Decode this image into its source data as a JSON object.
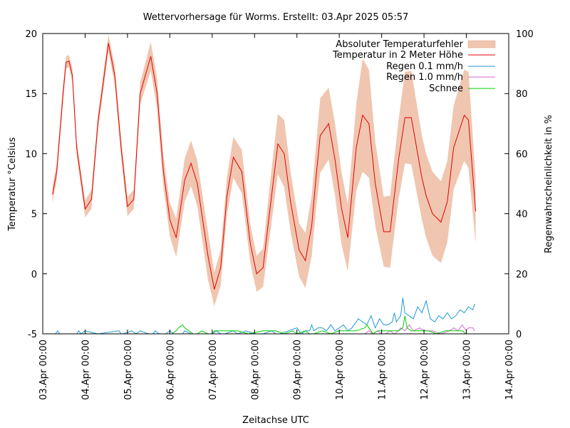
{
  "chart_data": {
    "type": "line",
    "title": "Wettervorhersage für Worms. Erstellt: 03.Apr 2025 05:57",
    "xlabel": "Zeitachse UTC",
    "ylabel": "Temperatur °Celsius",
    "y2label": "Regenwahrscheinlichkeit in %",
    "xlim": [
      0,
      11
    ],
    "ylim": [
      -5,
      20
    ],
    "y2lim": [
      0,
      100
    ],
    "x_ticks": [
      "03.Apr 00:00",
      "04.Apr 00:00",
      "05.Apr 00:00",
      "06.Apr 00:00",
      "07.Apr 00:00",
      "08.Apr 00:00",
      "09.Apr 00:00",
      "10.Apr 00:00",
      "11.Apr 00:00",
      "12.Apr 00:00",
      "13.Apr 00:00",
      "14.Apr 00:00"
    ],
    "y_ticks": [
      "-5",
      "0",
      "5",
      "10",
      "15",
      "20"
    ],
    "y2_ticks": [
      "0",
      "20",
      "40",
      "60",
      "80",
      "100"
    ],
    "legend": [
      "Absoluter Temperaturfehler",
      "Temperatur in 2 Meter Höhe",
      "Regen 0.1 mm/h",
      "Regen 1.0 mm/h",
      "Schnee"
    ],
    "legend_position": "top-right",
    "colors": {
      "band": "#f0c6b0",
      "temp": "#e60000",
      "rain01": "#1f9ad6",
      "rain10": "#d46ad6",
      "snow": "#00d000"
    },
    "temperature_keypoints": {
      "x": [
        0.23,
        0.33,
        0.48,
        0.55,
        0.62,
        0.7,
        0.8,
        1.0,
        1.15,
        1.3,
        1.55,
        1.7,
        1.85,
        2.0,
        2.15,
        2.3,
        2.55,
        2.7,
        2.85,
        3.0,
        3.15,
        3.35,
        3.5,
        3.65,
        3.9,
        4.05,
        4.2,
        4.35,
        4.5,
        4.7,
        4.9,
        5.05,
        5.2,
        5.35,
        5.55,
        5.7,
        5.85,
        6.05,
        6.2,
        6.35,
        6.45,
        6.55,
        6.75,
        6.9,
        7.05,
        7.2,
        7.4,
        7.55,
        7.7,
        7.85,
        8.05,
        8.2,
        8.4,
        8.55,
        8.7,
        8.95,
        9.05,
        9.2,
        9.4,
        9.55,
        9.7,
        9.95,
        10.05,
        10.22
      ],
      "temp": [
        6.6,
        8.5,
        15.0,
        17.6,
        17.7,
        16.5,
        10.5,
        5.4,
        6.2,
        12.5,
        19.2,
        16.5,
        10.5,
        5.6,
        6.2,
        15.0,
        18.1,
        15.0,
        8.5,
        4.5,
        3.0,
        7.8,
        9.2,
        7.5,
        1.5,
        -1.3,
        0.5,
        6.5,
        9.7,
        8.5,
        2.5,
        0.0,
        0.5,
        5.0,
        10.8,
        10.0,
        6.0,
        2.0,
        1.1,
        4.0,
        8.0,
        11.5,
        12.5,
        9.5,
        5.5,
        3.0,
        10.5,
        13.2,
        12.5,
        7.5,
        3.5,
        3.5,
        9.5,
        13.0,
        13.0,
        8.0,
        6.5,
        5.0,
        4.3,
        6.0,
        10.5,
        13.2,
        12.8,
        5.2
      ],
      "error": [
        0.7,
        0.7,
        0.7,
        0.5,
        0.5,
        0.6,
        0.6,
        0.7,
        0.8,
        0.7,
        0.7,
        0.8,
        0.8,
        0.8,
        0.8,
        0.9,
        1.2,
        1.3,
        1.3,
        1.4,
        1.6,
        1.8,
        1.9,
        1.9,
        2.0,
        1.4,
        1.5,
        1.6,
        1.7,
        1.8,
        1.6,
        1.5,
        1.6,
        2.1,
        2.5,
        2.8,
        2.5,
        2.2,
        2.3,
        2.5,
        2.7,
        3.1,
        3.0,
        3.0,
        3.0,
        2.8,
        3.6,
        4.7,
        4.5,
        3.5,
        2.9,
        3.0,
        3.3,
        3.8,
        3.9,
        3.5,
        3.5,
        3.5,
        3.4,
        3.4,
        3.5,
        3.8,
        4.0,
        2.7
      ]
    },
    "rain_01": {
      "x": [
        0.15,
        0.25,
        0.3,
        0.35,
        0.4,
        0.5,
        0.55,
        0.6,
        0.7,
        0.8,
        0.85,
        0.9,
        1.0,
        1.3,
        1.8,
        1.85,
        1.9,
        2.1,
        2.2,
        2.3,
        2.5,
        2.6,
        2.65,
        2.75,
        2.9,
        3.0,
        3.1,
        3.3,
        3.35,
        3.5,
        3.6,
        3.7,
        3.8,
        4.0,
        4.1,
        4.2,
        4.3,
        4.5,
        4.6,
        4.8,
        5.0,
        5.2,
        5.4,
        5.5,
        5.6,
        5.8,
        6.0,
        6.1,
        6.2,
        6.3,
        6.35,
        6.4,
        6.5,
        6.6,
        6.7,
        6.8,
        6.9,
        7.0,
        7.1,
        7.2,
        7.3,
        7.35,
        7.45,
        7.55,
        7.65,
        7.75,
        7.85,
        7.95,
        8.05,
        8.15,
        8.25,
        8.3,
        8.35,
        8.45,
        8.5,
        8.55,
        8.65,
        8.75,
        8.85,
        8.95,
        9.05,
        9.15,
        9.25,
        9.35,
        9.45,
        9.55,
        9.65,
        9.75,
        9.85,
        9.95,
        10.05,
        10.15,
        10.2
      ],
      "value": [
        0,
        0,
        0,
        1,
        0,
        0,
        0,
        0,
        0,
        0,
        1,
        0,
        1,
        0,
        1,
        0,
        0,
        1,
        0,
        1,
        0,
        0,
        1,
        0,
        0,
        1,
        0,
        0,
        1,
        0,
        0,
        0,
        0,
        0,
        1,
        0,
        0,
        1,
        0,
        1,
        0,
        0,
        1,
        0,
        0,
        1,
        2,
        0,
        1,
        1,
        3,
        1,
        2,
        2,
        1,
        3,
        1,
        2,
        3,
        1,
        2,
        3,
        5,
        4,
        3,
        6,
        2,
        5,
        3,
        3,
        4,
        7,
        4,
        6,
        12,
        7,
        6,
        5,
        9,
        7,
        11,
        5,
        4,
        6,
        5,
        7,
        5,
        6,
        8,
        7,
        9,
        8,
        10
      ]
    },
    "rain_10": {
      "x": [
        7.6,
        7.7,
        7.8,
        7.9,
        8.0,
        8.1,
        8.2,
        8.3,
        8.4,
        8.45,
        8.55,
        8.65,
        8.75,
        8.9,
        9.0,
        9.2,
        9.4,
        9.6,
        9.7,
        9.8,
        9.9,
        10.0,
        10.05,
        10.15,
        10.2
      ],
      "value": [
        0,
        1,
        0,
        1,
        0,
        0,
        1,
        0,
        1,
        2,
        1,
        3,
        1,
        2,
        1,
        1,
        0,
        1,
        2,
        1,
        3,
        1,
        2,
        2,
        1
      ]
    },
    "snow": {
      "x": [
        3.05,
        3.15,
        3.2,
        3.3,
        3.35,
        3.45,
        3.55,
        3.65,
        3.75,
        3.9,
        4.0,
        4.05,
        4.3,
        4.6,
        4.85,
        5.2,
        5.3,
        5.5,
        5.7,
        5.9,
        6.0,
        6.2,
        6.3,
        6.4,
        6.6,
        6.8,
        7.0,
        7.2,
        7.4,
        7.6,
        7.65,
        7.7,
        7.75,
        7.8,
        7.9,
        8.1,
        8.2,
        8.3,
        8.4,
        8.5,
        8.55,
        8.6,
        8.7,
        8.9,
        9.1,
        9.3,
        9.5,
        9.7,
        9.9,
        10.0
      ],
      "value": [
        0,
        1,
        2,
        3,
        2,
        1,
        0,
        0,
        1,
        0,
        0,
        1,
        1,
        1,
        0,
        1,
        1,
        1,
        0,
        1,
        0,
        1,
        0,
        0,
        1,
        0,
        1,
        1,
        1,
        2,
        3,
        2,
        1,
        0,
        1,
        1,
        1,
        1,
        1,
        2,
        6,
        2,
        1,
        1,
        1,
        0,
        1,
        1,
        1,
        0
      ]
    }
  }
}
